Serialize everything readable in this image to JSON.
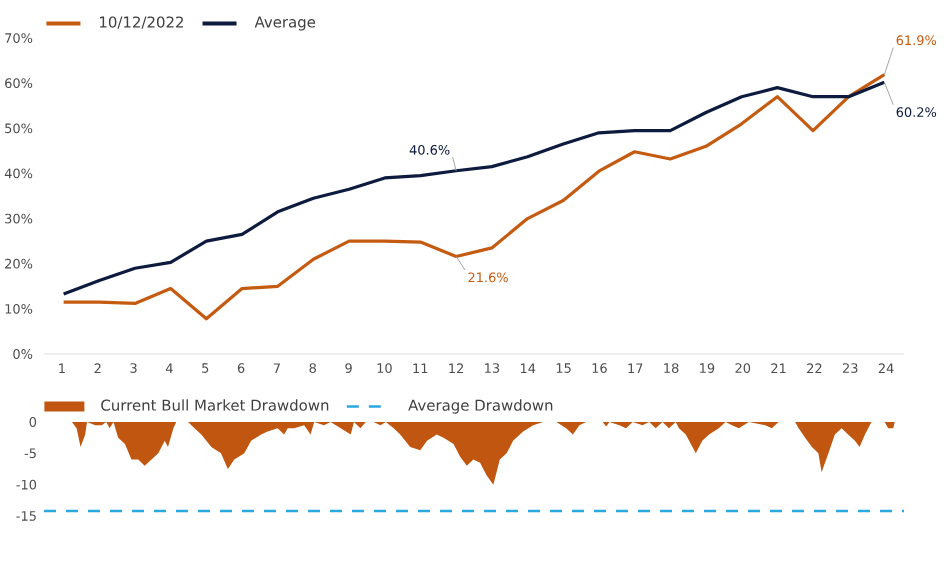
{
  "chart_data": [
    {
      "type": "line",
      "categories": [
        null,
        null,
        null,
        null,
        null,
        null,
        null,
        null,
        null,
        null,
        null,
        null,
        null,
        null,
        null,
        null,
        null,
        null,
        null,
        null,
        null,
        null,
        null,
        null
      ],
      "series": [
        {
          "name": "10/12/2022",
          "color": "#c55a11",
          "values": [
            11.5,
            11.5,
            11.2,
            14.5,
            7.8,
            14.5,
            15,
            21,
            25,
            25,
            24.8,
            21.6,
            23.5,
            30,
            34,
            40.5,
            44.8,
            43.2,
            46,
            51,
            57,
            49.5,
            57,
            61.9
          ]
        },
        {
          "name": "Average",
          "color": "#0d1b3e",
          "values": [
            13.3,
            16.3,
            19,
            20.3,
            25,
            26.5,
            31.5,
            34.5,
            36.5,
            39,
            39.5,
            40.6,
            41.5,
            43.7,
            46.5,
            49,
            49.5,
            49.5,
            53.5,
            57,
            59,
            57,
            57,
            60.2
          ]
        }
      ],
      "ylim": [
        0,
        70
      ],
      "yticks": [
        {
          "value": 0,
          "label": "0%"
        },
        {
          "value": 10,
          "label": "10%"
        },
        {
          "value": 20,
          "label": "20%"
        },
        {
          "value": 30,
          "label": "30%"
        },
        {
          "value": 40,
          "label": "40%"
        },
        {
          "value": 50,
          "label": "50%"
        },
        {
          "value": 60,
          "label": "60%"
        },
        {
          "value": 70,
          "label": "70%"
        }
      ],
      "annotations": [
        {
          "text": "40.6%",
          "y": 40.6
        },
        {
          "text": "21.6%",
          "y": 21.6
        },
        "61.9%",
        "60.2%"
      ],
      "legend": "top left"
    },
    {
      "type": "area",
      "x": [
        1.28,
        1.41,
        1.52,
        1.65,
        1.7,
        1.93,
        2.11,
        2.24,
        2.33,
        2.44,
        2.57,
        2.76,
        2.94,
        3.13,
        3.31,
        3.5,
        3.69,
        3.87,
        3.96,
        4.11,
        4.19,
        4.52,
        4.7,
        4.89,
        5.17,
        5.44,
        5.63,
        5.81,
        6.09,
        6.28,
        6.56,
        6.74,
        7.02,
        7.2,
        7.3,
        7.48,
        7.76,
        7.94,
        8.04,
        8.31,
        8.5,
        8.78,
        9.06,
        9.15,
        9.33,
        9.48,
        9.7,
        9.89,
        10.04,
        10.26,
        10.44,
        10.72,
        11.0,
        11.19,
        11.46,
        11.65,
        11.93,
        12.11,
        12.3,
        12.48,
        12.67,
        12.85,
        13.04,
        13.22,
        13.41,
        13.59,
        13.87,
        14.15,
        14.43,
        14.8,
        15.07,
        15.26,
        15.44,
        15.63,
        16.09,
        16.19,
        16.28,
        16.56,
        16.74,
        16.93,
        17.2,
        17.39,
        17.57,
        17.76,
        17.94,
        18.13,
        18.22,
        18.41,
        18.69,
        18.87,
        19.06,
        19.33,
        19.52,
        19.7,
        19.89,
        20.17,
        20.63,
        20.81,
        21.0,
        21.46,
        21.56,
        21.74,
        21.93,
        22.11,
        22.2,
        22.39,
        22.57,
        22.76,
        22.94,
        23.13,
        23.26,
        23.41,
        23.59,
        23.96,
        24.06,
        24.2,
        24.24
      ],
      "series": [
        {
          "name": "Current Bull Market Drawdown",
          "color": "#c0560f",
          "values": [
            0,
            -1,
            -4,
            -2,
            0,
            -0.5,
            -0.5,
            0,
            -1,
            0,
            -2.5,
            -3.5,
            -6,
            -6,
            -7,
            -6,
            -5,
            -3,
            -4,
            -1,
            0,
            0,
            -1,
            -2,
            -4,
            -5,
            -7.5,
            -6,
            -5,
            -3,
            -2,
            -1.5,
            -1,
            -2,
            -1,
            -1,
            -0.5,
            -2,
            0,
            -0.5,
            0,
            -1,
            -2,
            0,
            -1,
            0,
            0,
            -0.5,
            0,
            -1,
            -2,
            -4,
            -4.5,
            -3,
            -2,
            -2.5,
            -3.5,
            -5.5,
            -7,
            -6,
            -6.5,
            -8.5,
            -10,
            -6,
            -5,
            -3,
            -1.5,
            -0.5,
            0,
            0,
            -1,
            -2,
            -0.5,
            0,
            0,
            -0.7,
            0,
            -0.5,
            -1,
            0,
            -0.5,
            0,
            -1,
            0,
            -1,
            0,
            -1,
            -2,
            -5,
            -3,
            -2,
            -1,
            0,
            -0.5,
            -1,
            0,
            -0.5,
            -1,
            0,
            0,
            -1,
            -2.5,
            -4,
            -5,
            -8,
            -5,
            -2,
            -1,
            -2,
            -3,
            -4,
            -2,
            0,
            0,
            -1,
            -1,
            0
          ]
        }
      ],
      "xlim": [
        0.5,
        24.5
      ],
      "xticks": [
        1,
        2,
        3,
        4,
        5,
        6,
        7,
        8,
        9,
        10,
        11,
        12,
        13,
        14,
        15,
        16,
        17,
        18,
        19,
        20,
        21,
        22,
        23,
        24
      ],
      "ylim": [
        -15,
        0
      ],
      "yticks": [
        0,
        -5,
        -10,
        -15
      ],
      "ref_lines": [
        {
          "axis": "y",
          "value": -14.2,
          "label": "Average Drawdown",
          "color": "#2aa8e0",
          "line_style": "dashed"
        }
      ],
      "legend": "top left"
    }
  ]
}
